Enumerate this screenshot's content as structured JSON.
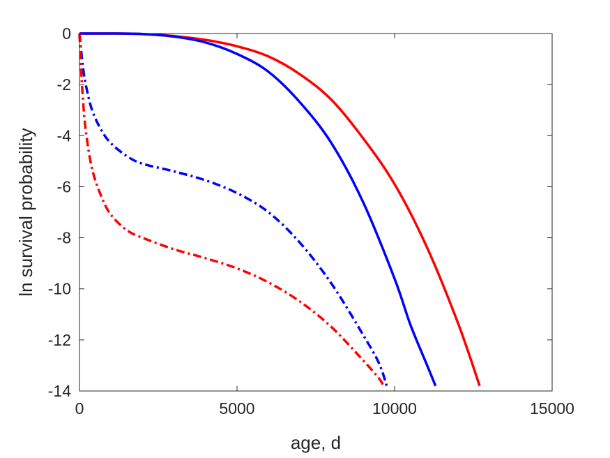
{
  "chart_data": {
    "type": "line",
    "title": "",
    "xlabel": "age, d",
    "ylabel": "ln survival probability",
    "xlim": [
      0,
      15000
    ],
    "ylim": [
      -14,
      0
    ],
    "xticks": [
      0,
      5000,
      10000,
      15000
    ],
    "xtick_labels": [
      "0",
      "5000",
      "10000",
      "15000"
    ],
    "yticks": [
      0,
      -2,
      -4,
      -6,
      -8,
      -10,
      -12,
      -14
    ],
    "ytick_labels": [
      "0",
      "-2",
      "-4",
      "-6",
      "-8",
      "-10",
      "-12",
      "-14"
    ],
    "grid": false,
    "legend": "none",
    "series": [
      {
        "color": "#ff0000",
        "style": "solid",
        "x": [
          0,
          1000,
          2000,
          3000,
          4000,
          5000,
          6000,
          7000,
          8000,
          9000,
          10000,
          11000,
          12000,
          12700
        ],
        "y": [
          0,
          0,
          -0.02,
          -0.1,
          -0.25,
          -0.5,
          -0.9,
          -1.6,
          -2.6,
          -4.1,
          -5.9,
          -8.3,
          -11.3,
          -13.8
        ]
      },
      {
        "color": "#0000ff",
        "style": "solid",
        "x": [
          0,
          1000,
          2000,
          3000,
          4000,
          5000,
          6000,
          7000,
          8000,
          9000,
          10000,
          10500,
          11000,
          11300
        ],
        "y": [
          0,
          0,
          -0.02,
          -0.12,
          -0.35,
          -0.8,
          -1.5,
          -2.7,
          -4.3,
          -6.6,
          -9.6,
          -11.4,
          -12.9,
          -13.8
        ]
      },
      {
        "color": "#0000ff",
        "style": "dashdot",
        "x": [
          0,
          100,
          200,
          400,
          700,
          1000,
          1500,
          2000,
          3000,
          4000,
          5000,
          6000,
          7000,
          8000,
          9000,
          9500,
          9750
        ],
        "y": [
          0,
          -1.2,
          -2.0,
          -3.0,
          -3.8,
          -4.3,
          -4.8,
          -5.1,
          -5.4,
          -5.75,
          -6.25,
          -7.0,
          -8.2,
          -9.8,
          -11.8,
          -12.9,
          -13.8
        ]
      },
      {
        "color": "#ff0000",
        "style": "dashdot",
        "x": [
          0,
          50,
          100,
          200,
          400,
          700,
          1000,
          1500,
          2000,
          3000,
          4000,
          5000,
          6000,
          7000,
          8000,
          9000,
          9500,
          9650
        ],
        "y": [
          0,
          -1.3,
          -2.4,
          -3.8,
          -5.3,
          -6.4,
          -7.1,
          -7.7,
          -8.0,
          -8.45,
          -8.8,
          -9.2,
          -9.75,
          -10.5,
          -11.5,
          -12.8,
          -13.5,
          -13.8
        ]
      }
    ]
  }
}
